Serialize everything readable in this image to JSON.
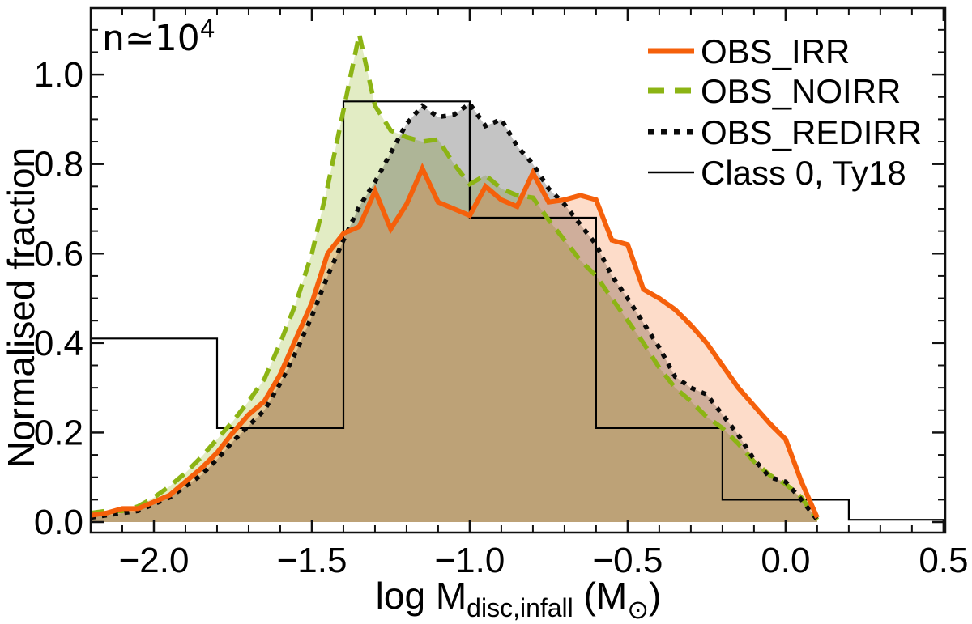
{
  "chart_data": {
    "type": "line",
    "title": "",
    "ylabel": "Normalised fraction",
    "xlabel_parts": [
      "log M",
      "disc,infall",
      " (M",
      "⊙",
      ")"
    ],
    "annotation": {
      "prefix": "n≃10",
      "exponent": "4"
    },
    "axes": {
      "xlim": [
        -2.2,
        0.5055
      ],
      "ylim": [
        -0.0235,
        1.1485
      ],
      "x_major": [
        -2.0,
        -1.5,
        -1.0,
        -0.5,
        0.0,
        0.5
      ],
      "x_major_labels": [
        "−2.0",
        "−1.5",
        "−1.0",
        "−0.5",
        "0.0",
        "0.5"
      ],
      "x_minor_step": 0.1,
      "y_major": [
        0.0,
        0.2,
        0.4,
        0.6,
        0.8,
        1.0
      ],
      "y_major_labels": [
        "0.0",
        "0.2",
        "0.4",
        "0.6",
        "0.8",
        "1.0"
      ],
      "y_minor_step": 0.05,
      "grid": false
    },
    "x": [
      -2.2,
      -2.15,
      -2.1,
      -2.05,
      -2.0,
      -1.95,
      -1.9,
      -1.85,
      -1.8,
      -1.75,
      -1.7,
      -1.65,
      -1.6,
      -1.55,
      -1.5,
      -1.45,
      -1.4,
      -1.35,
      -1.3,
      -1.25,
      -1.2,
      -1.15,
      -1.1,
      -1.05,
      -1.0,
      -0.95,
      -0.9,
      -0.85,
      -0.8,
      -0.75,
      -0.7,
      -0.65,
      -0.6,
      -0.55,
      -0.5,
      -0.45,
      -0.4,
      -0.35,
      -0.3,
      -0.25,
      -0.2,
      -0.15,
      -0.1,
      -0.05,
      0.0,
      0.05,
      0.1
    ],
    "series": [
      {
        "name": "OBS_NOIRR",
        "style": "dashed",
        "color": "#8cb414",
        "fill_opacity": 0.25,
        "values": [
          0.02,
          0.025,
          0.025,
          0.035,
          0.055,
          0.08,
          0.11,
          0.145,
          0.185,
          0.225,
          0.27,
          0.32,
          0.4,
          0.49,
          0.6,
          0.75,
          0.92,
          1.09,
          0.93,
          0.875,
          0.86,
          0.85,
          0.855,
          0.8,
          0.755,
          0.775,
          0.745,
          0.73,
          0.725,
          0.675,
          0.63,
          0.585,
          0.55,
          0.5,
          0.45,
          0.4,
          0.345,
          0.3,
          0.27,
          0.235,
          0.21,
          0.175,
          0.135,
          0.105,
          0.085,
          0.055,
          0.005
        ]
      },
      {
        "name": "OBS_REDIRR",
        "style": "dotted",
        "color": "#0a0a0a",
        "fill_opacity": 0.24,
        "values": [
          0.01,
          0.015,
          0.02,
          0.025,
          0.04,
          0.055,
          0.08,
          0.105,
          0.14,
          0.18,
          0.215,
          0.25,
          0.31,
          0.38,
          0.46,
          0.55,
          0.63,
          0.705,
          0.76,
          0.825,
          0.89,
          0.93,
          0.905,
          0.91,
          0.935,
          0.885,
          0.9,
          0.84,
          0.8,
          0.745,
          0.71,
          0.665,
          0.62,
          0.55,
          0.5,
          0.445,
          0.39,
          0.325,
          0.3,
          0.285,
          0.24,
          0.195,
          0.14,
          0.1,
          0.09,
          0.05,
          0.005
        ]
      },
      {
        "name": "OBS_IRR",
        "style": "solid",
        "color": "#f5600b",
        "fill_opacity": 0.22,
        "values": [
          0.015,
          0.02,
          0.03,
          0.03,
          0.045,
          0.06,
          0.09,
          0.12,
          0.155,
          0.2,
          0.24,
          0.27,
          0.33,
          0.41,
          0.49,
          0.6,
          0.645,
          0.66,
          0.74,
          0.655,
          0.71,
          0.79,
          0.715,
          0.7,
          0.685,
          0.75,
          0.72,
          0.705,
          0.78,
          0.715,
          0.72,
          0.73,
          0.72,
          0.63,
          0.62,
          0.52,
          0.5,
          0.475,
          0.44,
          0.4,
          0.35,
          0.3,
          0.26,
          0.22,
          0.185,
          0.09,
          0.01
        ]
      }
    ],
    "step_series": {
      "name": "Class 0, Ty18",
      "style": "thin",
      "color": "#000000",
      "bin_edges": [
        -2.2,
        -1.8,
        -1.4,
        -1.0,
        -0.6,
        -0.2,
        0.2,
        0.5055
      ],
      "values": [
        0.41,
        0.21,
        0.94,
        0.68,
        0.21,
        0.05,
        0.005
      ]
    },
    "legend": [
      {
        "label": "OBS_IRR",
        "style": "solid",
        "color": "#f5600b"
      },
      {
        "label": "OBS_NOIRR",
        "style": "dashed",
        "color": "#8cb414"
      },
      {
        "label": "OBS_REDIRR",
        "style": "dotted",
        "color": "#0a0a0a"
      },
      {
        "label": "Class 0, Ty18",
        "style": "thin",
        "color": "#000000"
      }
    ],
    "legend_position": "top-right"
  }
}
